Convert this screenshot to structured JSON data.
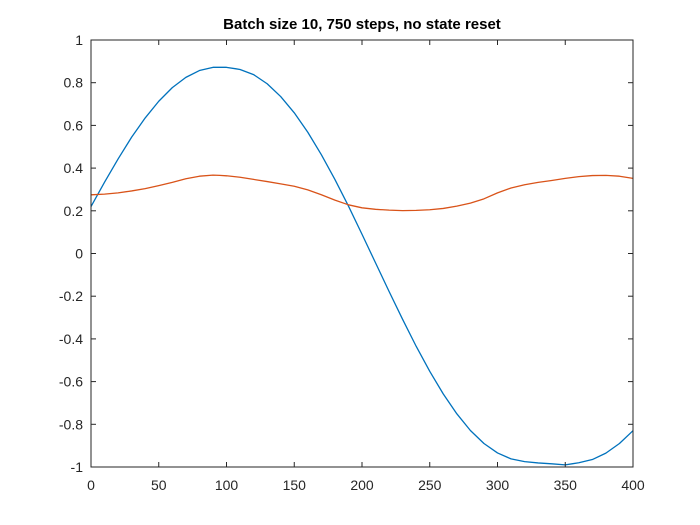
{
  "chart_data": {
    "type": "line",
    "title": "Batch size 10, 750 steps, no state reset",
    "xlabel": "",
    "ylabel": "",
    "xlim": [
      0,
      400
    ],
    "ylim": [
      -1,
      1
    ],
    "x_ticks": [
      0,
      50,
      100,
      150,
      200,
      250,
      300,
      350,
      400
    ],
    "x_tick_labels": [
      "0",
      "50",
      "100",
      "150",
      "200",
      "250",
      "300",
      "350",
      "400"
    ],
    "y_ticks": [
      -1,
      -0.8,
      -0.6,
      -0.4,
      -0.2,
      0,
      0.2,
      0.4,
      0.6,
      0.8,
      1
    ],
    "y_tick_labels": [
      "-1",
      "-0.8",
      "-0.6",
      "-0.4",
      "-0.2",
      "0",
      "0.2",
      "0.4",
      "0.6",
      "0.8",
      "1"
    ],
    "grid": false,
    "legend": "none",
    "box": true,
    "series": [
      {
        "color": "#0072BD",
        "x": [
          0,
          10,
          20,
          30,
          40,
          50,
          60,
          70,
          80,
          90,
          100,
          107,
          110,
          120,
          130,
          140,
          150,
          160,
          170,
          180,
          190,
          200,
          210,
          220,
          230,
          240,
          250,
          260,
          270,
          280,
          290,
          300,
          310,
          320,
          330,
          340,
          350,
          355,
          360,
          370,
          380,
          390,
          400
        ],
        "y": [
          0.22,
          0.334,
          0.443,
          0.545,
          0.635,
          0.713,
          0.777,
          0.825,
          0.857,
          0.872,
          0.872,
          0.865,
          0.862,
          0.838,
          0.795,
          0.735,
          0.659,
          0.568,
          0.463,
          0.347,
          0.222,
          0.09,
          -0.044,
          -0.178,
          -0.309,
          -0.435,
          -0.552,
          -0.658,
          -0.751,
          -0.829,
          -0.89,
          -0.934,
          -0.962,
          -0.975,
          -0.981,
          -0.985,
          -0.99,
          -0.985,
          -0.98,
          -0.965,
          -0.935,
          -0.89,
          -0.83
        ]
      },
      {
        "color": "#D95319",
        "x": [
          0,
          10,
          20,
          30,
          40,
          50,
          60,
          70,
          80,
          90,
          95,
          100,
          110,
          120,
          130,
          140,
          150,
          160,
          170,
          180,
          190,
          200,
          210,
          220,
          230,
          240,
          250,
          260,
          270,
          280,
          290,
          300,
          310,
          320,
          330,
          340,
          350,
          360,
          370,
          380,
          390,
          400
        ],
        "y": [
          0.275,
          0.278,
          0.284,
          0.293,
          0.304,
          0.318,
          0.333,
          0.35,
          0.362,
          0.367,
          0.366,
          0.364,
          0.357,
          0.347,
          0.337,
          0.326,
          0.315,
          0.298,
          0.275,
          0.25,
          0.228,
          0.214,
          0.207,
          0.203,
          0.201,
          0.202,
          0.205,
          0.211,
          0.222,
          0.236,
          0.256,
          0.284,
          0.307,
          0.322,
          0.333,
          0.342,
          0.352,
          0.36,
          0.365,
          0.366,
          0.362,
          0.352
        ]
      }
    ]
  }
}
